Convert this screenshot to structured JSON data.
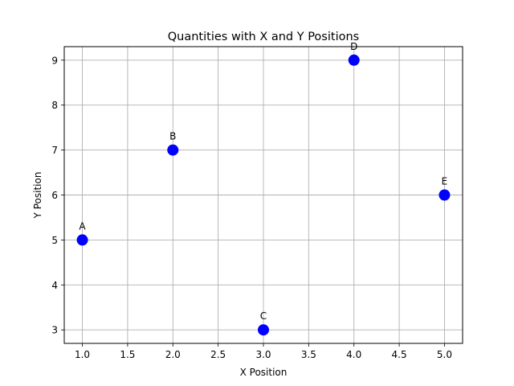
{
  "chart_data": {
    "type": "scatter",
    "title": "Quantities with X and Y Positions",
    "xlabel": "X Position",
    "ylabel": "Y Position",
    "xlim": [
      0.8,
      5.2
    ],
    "ylim": [
      2.7,
      9.3
    ],
    "xticks": [
      "1.0",
      "1.5",
      "2.0",
      "2.5",
      "3.0",
      "3.5",
      "4.0",
      "4.5",
      "5.0"
    ],
    "yticks": [
      "3",
      "4",
      "5",
      "6",
      "7",
      "8",
      "9"
    ],
    "grid": true,
    "marker_color": "#0000ff",
    "points": [
      {
        "label": "A",
        "x": 1,
        "y": 5
      },
      {
        "label": "B",
        "x": 2,
        "y": 7
      },
      {
        "label": "C",
        "x": 3,
        "y": 3
      },
      {
        "label": "D",
        "x": 4,
        "y": 9
      },
      {
        "label": "E",
        "x": 5,
        "y": 6
      }
    ]
  }
}
